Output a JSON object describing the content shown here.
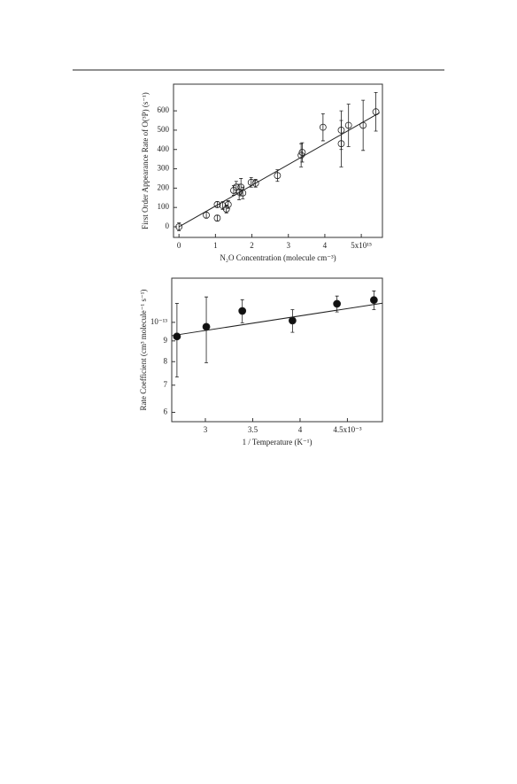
{
  "chart_data": [
    {
      "type": "scatter",
      "y_label": "First Order Appearance Rate of O(³P) (s⁻¹)",
      "x_label": "N₂O Concentration (molecule cm⁻³)",
      "x": [
        0,
        0.75,
        1.05,
        1.05,
        1.2,
        1.3,
        1.35,
        1.5,
        1.57,
        1.65,
        1.7,
        1.75,
        1.98,
        2.1,
        2.7,
        3.35,
        3.38,
        3.95,
        4.45,
        4.45,
        4.65,
        5.05,
        5.4
      ],
      "y": [
        0,
        60,
        45,
        115,
        110,
        92,
        115,
        188,
        205,
        180,
        205,
        175,
        230,
        225,
        265,
        370,
        385,
        515,
        500,
        430,
        525,
        525,
        595
      ],
      "errors": [
        20,
        15,
        15,
        15,
        20,
        20,
        20,
        25,
        30,
        40,
        45,
        30,
        25,
        20,
        30,
        60,
        50,
        70,
        100,
        120,
        110,
        130,
        100
      ],
      "marker": "open",
      "fit": {
        "x": [
          0,
          5.5
        ],
        "y": [
          0,
          590
        ]
      },
      "xlim": [
        -0.15,
        5.58
      ],
      "ylim": [
        -55,
        738
      ],
      "xticks": [
        0,
        1,
        2,
        3,
        4,
        {
          "value": 5,
          "label": "5x10¹⁵"
        }
      ],
      "yticks": [
        0,
        100,
        200,
        300,
        400,
        500,
        600
      ],
      "log_y": false
    },
    {
      "type": "scatter",
      "y_label": "Rate Coefficient (cm³ molecule⁻¹ s⁻¹)",
      "x_label": "1 / Temperature (K⁻¹)",
      "x": [
        2.7,
        3.01,
        3.39,
        3.92,
        4.39,
        4.78
      ],
      "y": [
        9.23e-14,
        9.75e-14,
        1.067e-13,
        1.01e-13,
        1.111e-13,
        1.135e-13
      ],
      "errors": [
        1.9e-14,
        1.8e-14,
        7e-15,
        6.5e-15,
        5e-15,
        6e-15
      ],
      "marker": "filled",
      "fit": {
        "x": [
          2.645,
          4.87
        ],
        "y": [
          9.27e-14,
          1.115e-13
        ]
      },
      "xlim": [
        2.645,
        4.87
      ],
      "ylim": [
        5.69e-14,
        1.285e-13
      ],
      "xticks": [
        3.0,
        3.5,
        4.0,
        {
          "value": 4.5,
          "label": "4.5x10⁻³"
        }
      ],
      "yticks": [
        {
          "value": 1e-13,
          "label": "10⁻¹³"
        },
        {
          "value": 9e-14,
          "label": "9"
        },
        {
          "value": 8e-14,
          "label": "8"
        },
        {
          "value": 7e-14,
          "label": "7"
        },
        {
          "value": 6e-14,
          "label": "6"
        }
      ],
      "log_y": true
    }
  ]
}
